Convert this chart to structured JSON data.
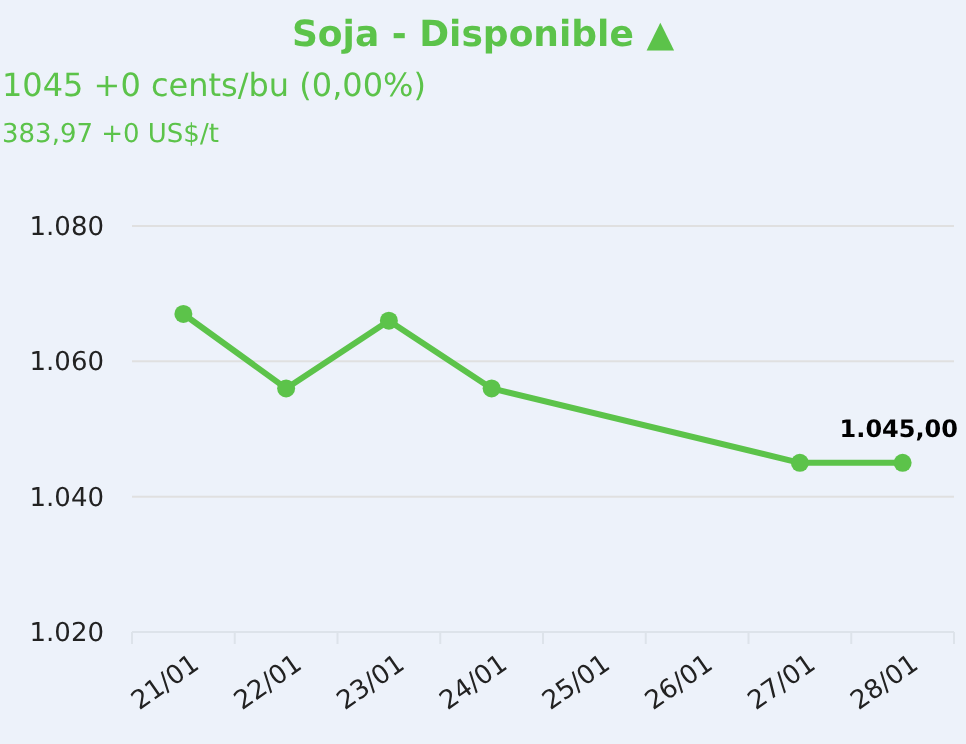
{
  "chart_data": {
    "type": "line",
    "title": "Soja - Disponible ▲",
    "annotations": [
      "1045 +0 cents/bu (0,00%)",
      "383,97 +0 US$/t"
    ],
    "categories": [
      "21/01",
      "22/01",
      "23/01",
      "24/01",
      "25/01",
      "26/01",
      "27/01",
      "28/01"
    ],
    "series": [
      {
        "color": "#5cc34a",
        "x": [
          "21/01",
          "22/01",
          "23/01",
          "24/01",
          "27/01",
          "28/01"
        ],
        "values": [
          1067,
          1056,
          1066,
          1056,
          1045,
          1045
        ],
        "value_labels": [
          null,
          null,
          null,
          null,
          null,
          "1.045,00"
        ]
      }
    ],
    "ylim": [
      1020,
      1080
    ],
    "yticks": [
      {
        "value": 1020,
        "label": "1.020"
      },
      {
        "value": 1040,
        "label": "1.040"
      },
      {
        "value": 1060,
        "label": "1.060"
      },
      {
        "value": 1080,
        "label": "1.080"
      }
    ],
    "grid": "y",
    "marker": "circle",
    "line_style": "solid"
  }
}
